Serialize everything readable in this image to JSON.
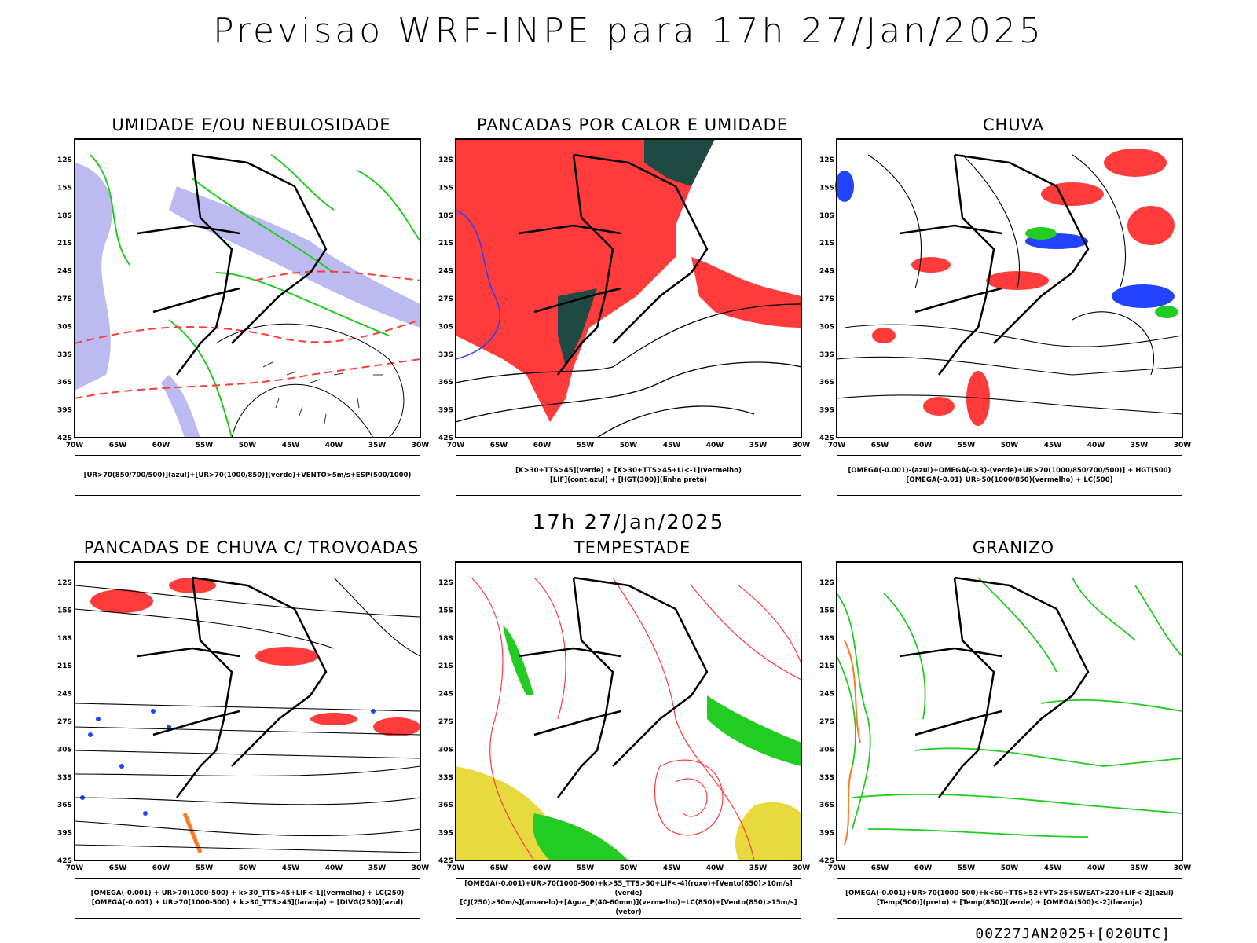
{
  "title": "Previsao WRF-INPE  para 17h 27/Jan/2025",
  "mid_title": "17h 27/Jan/2025",
  "footer": "00Z27JAN2025+[020UTC]",
  "axes": {
    "lon_labels": [
      "70W",
      "65W",
      "60W",
      "55W",
      "50W",
      "45W",
      "40W",
      "35W",
      "30W"
    ],
    "lat_labels": [
      "12S",
      "15S",
      "18S",
      "21S",
      "24S",
      "27S",
      "30S",
      "33S",
      "36S",
      "39S",
      "42S"
    ]
  },
  "colors": {
    "red": "#ff3b3b",
    "green": "#22cc22",
    "lavender": "#aaaaee",
    "blue": "#2244ff",
    "darkteal": "#1f4a44",
    "yellow": "#e6d52a",
    "orange": "#ff7a20"
  },
  "panels": [
    {
      "id": "umidade",
      "title": "UMIDADE E/OU NEBULOSIDADE",
      "legend": [
        "[UR>70(850/700/500)](azul)+[UR>70(1000/850)](verde)+VENTO>5m/s+ESP(500/1000)"
      ]
    },
    {
      "id": "pancadas-calor",
      "title": "PANCADAS POR CALOR E UMIDADE",
      "legend": [
        "[K>30+TTS>45](verde) + [K>30+TTS>45+LI<-1](vermelho)",
        "[LIF](cont.azul) + [HGT(300)](linha preta)"
      ]
    },
    {
      "id": "chuva",
      "title": "CHUVA",
      "legend": [
        "[OMEGA(-0.001)-(azul)+OMEGA(-0.3)-(verde)+UR>70(1000/850/700/500)] + HGT(500)",
        "[OMEGA(-0.01)_UR>50(1000/850)(vermelho) + LC(500)"
      ]
    },
    {
      "id": "pancadas-trovoadas",
      "title": "PANCADAS DE CHUVA C/ TROVOADAS",
      "legend": [
        "[OMEGA(-0.001) + UR>70(1000-500) + k>30_TTS>45+LIF<-1](vermelho) + LC(250)",
        "[OMEGA(-0.001) + UR>70(1000-500) + k>30_TTS>45](laranja) + [DIVG(250)](azul)"
      ]
    },
    {
      "id": "tempestade",
      "title": "TEMPESTADE",
      "legend": [
        "[OMEGA(-0.001)+UR>70(1000-500)+k>35_TTS>50+LIF<-4](roxo)+[Vento(850)>10m/s](verde)",
        "[CJ(250)>30m/s](amarelo)+[Agua_P(40-60mm)](vermelho)+LC(850)+[Vento(850)>15m/s](vetor)"
      ]
    },
    {
      "id": "granizo",
      "title": "GRANIZO",
      "legend": [
        "[OMEGA(-0.001)+UR>70(1000-500)+k<60+TTS>52+VT>25+SWEAT>220+LIF<-2](azul)",
        "[Temp(500)](preto) + [Temp(850)](verde) + [OMEGA(500)<-2](laranja)"
      ]
    }
  ]
}
